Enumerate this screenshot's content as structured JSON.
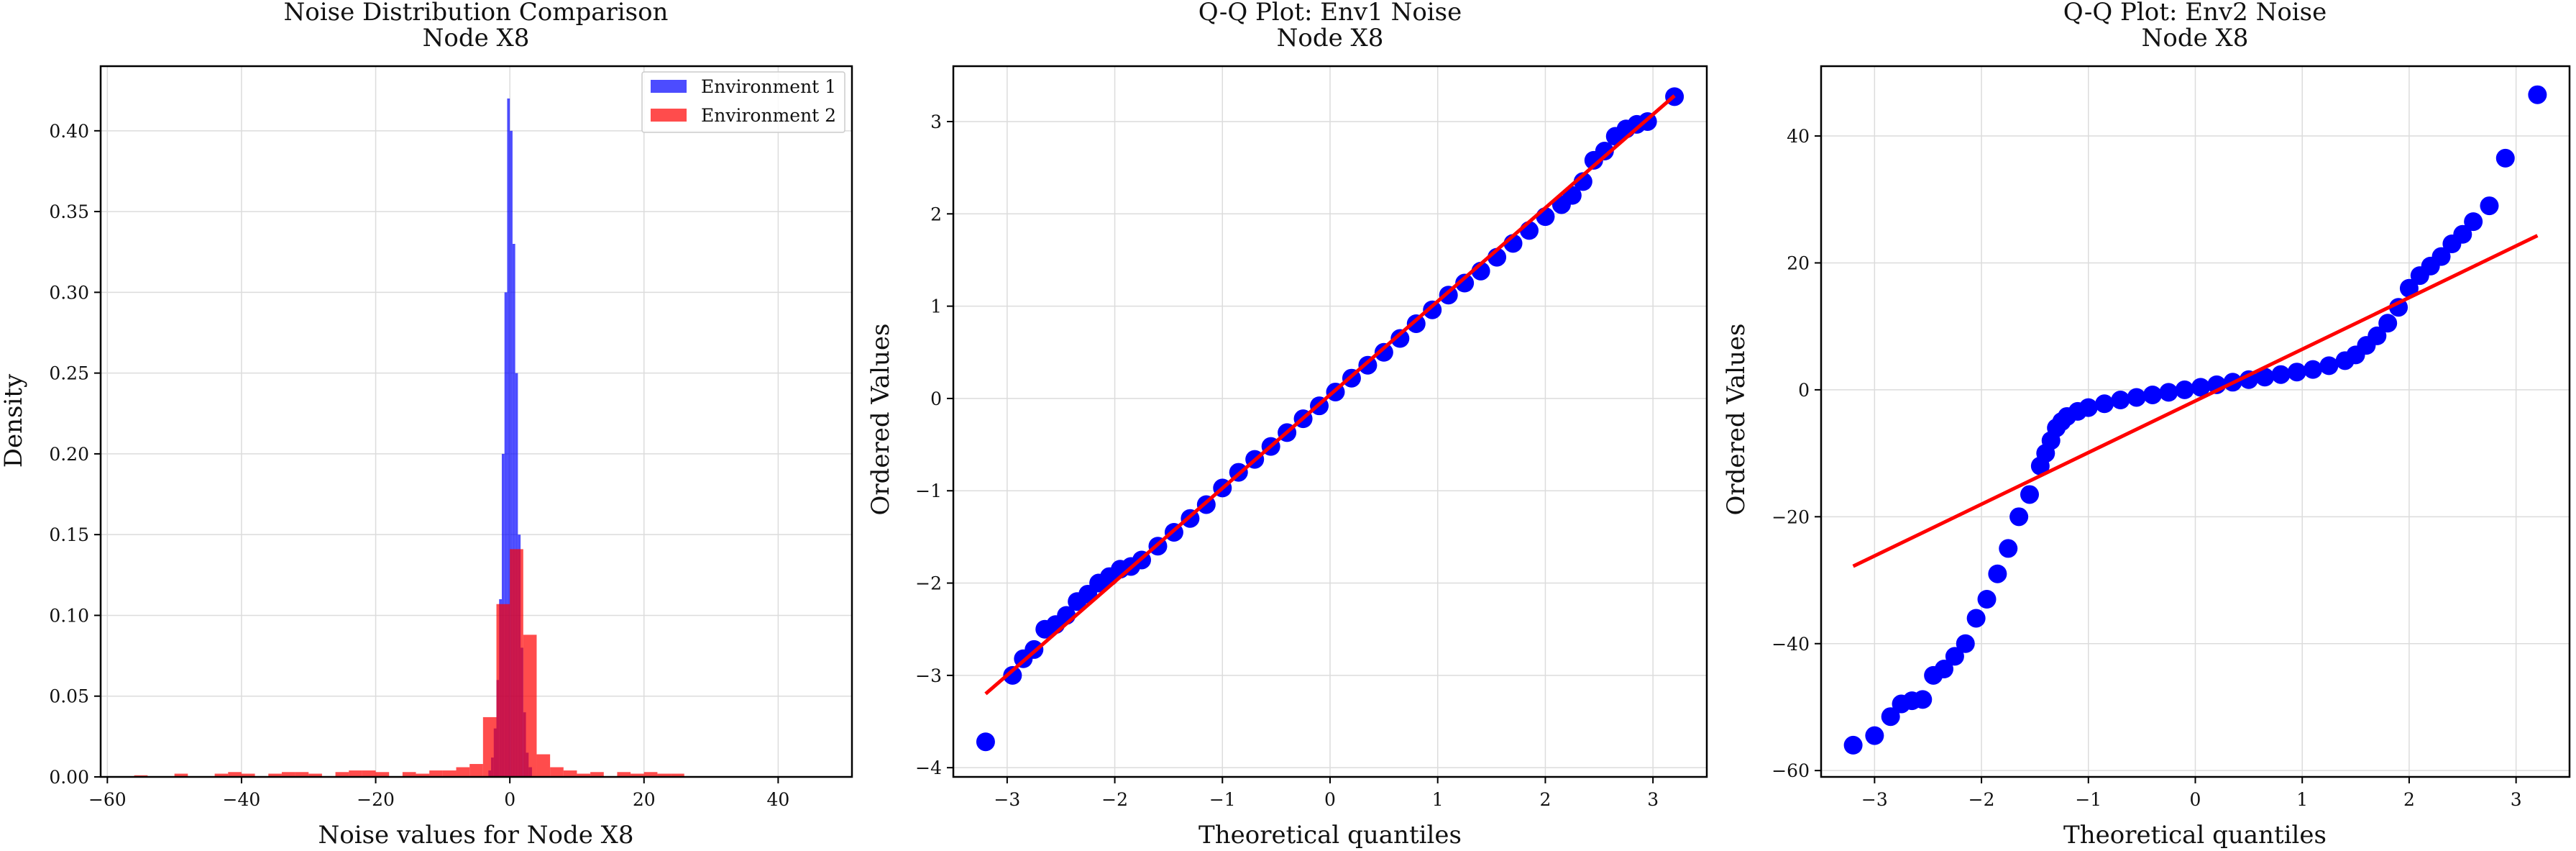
{
  "colors": {
    "env1": "#0000ff",
    "env2": "#ff0000",
    "qq_points": "#0000ff",
    "qq_line": "#ff0000",
    "grid": "#dcdcdc",
    "axes": "#000000"
  },
  "chart_data": [
    {
      "type": "bar",
      "subtype": "overlaid-histogram",
      "title_lines": [
        "Noise Distribution Comparison",
        "Node X8"
      ],
      "xlabel": "Noise values for Node X8",
      "ylabel": "Density",
      "xlim": [
        -61,
        51
      ],
      "ylim": [
        0,
        0.44
      ],
      "xticks": [
        -60,
        -40,
        -20,
        0,
        20,
        40
      ],
      "xtick_labels": [
        "−60",
        "−40",
        "−20",
        "0",
        "20",
        "40"
      ],
      "yticks": [
        0.0,
        0.05,
        0.1,
        0.15,
        0.2,
        0.25,
        0.3,
        0.35,
        0.4
      ],
      "ytick_labels": [
        "0.00",
        "0.05",
        "0.10",
        "0.15",
        "0.20",
        "0.25",
        "0.30",
        "0.35",
        "0.40"
      ],
      "grid": true,
      "legend": "top-right",
      "series": [
        {
          "name": "Environment 1",
          "color": "#0000ff",
          "bins": [
            {
              "x0": -3.2,
              "x1": -2.8,
              "v": 0.004
            },
            {
              "x0": -2.8,
              "x1": -2.4,
              "v": 0.012
            },
            {
              "x0": -2.4,
              "x1": -2.0,
              "v": 0.03
            },
            {
              "x0": -2.0,
              "x1": -1.6,
              "v": 0.06
            },
            {
              "x0": -1.6,
              "x1": -1.2,
              "v": 0.11
            },
            {
              "x0": -1.2,
              "x1": -0.8,
              "v": 0.2
            },
            {
              "x0": -0.8,
              "x1": -0.4,
              "v": 0.3
            },
            {
              "x0": -0.4,
              "x1": 0.0,
              "v": 0.42
            },
            {
              "x0": 0.0,
              "x1": 0.4,
              "v": 0.4
            },
            {
              "x0": 0.4,
              "x1": 0.8,
              "v": 0.33
            },
            {
              "x0": 0.8,
              "x1": 1.2,
              "v": 0.25
            },
            {
              "x0": 1.2,
              "x1": 1.6,
              "v": 0.15
            },
            {
              "x0": 1.6,
              "x1": 2.0,
              "v": 0.08
            },
            {
              "x0": 2.0,
              "x1": 2.4,
              "v": 0.04
            },
            {
              "x0": 2.4,
              "x1": 2.8,
              "v": 0.015
            },
            {
              "x0": 2.8,
              "x1": 3.3,
              "v": 0.006
            }
          ]
        },
        {
          "name": "Environment 2",
          "color": "#ff0000",
          "bins": [
            {
              "x0": -56,
              "x1": -54,
              "v": 0.001
            },
            {
              "x0": -50,
              "x1": -48,
              "v": 0.002
            },
            {
              "x0": -44,
              "x1": -42,
              "v": 0.002
            },
            {
              "x0": -42,
              "x1": -40,
              "v": 0.003
            },
            {
              "x0": -40,
              "x1": -38,
              "v": 0.002
            },
            {
              "x0": -36,
              "x1": -34,
              "v": 0.002
            },
            {
              "x0": -34,
              "x1": -32,
              "v": 0.003
            },
            {
              "x0": -32,
              "x1": -30,
              "v": 0.003
            },
            {
              "x0": -30,
              "x1": -28,
              "v": 0.002
            },
            {
              "x0": -26,
              "x1": -24,
              "v": 0.003
            },
            {
              "x0": -24,
              "x1": -22,
              "v": 0.004
            },
            {
              "x0": -22,
              "x1": -20,
              "v": 0.004
            },
            {
              "x0": -20,
              "x1": -18,
              "v": 0.003
            },
            {
              "x0": -16,
              "x1": -14,
              "v": 0.003
            },
            {
              "x0": -14,
              "x1": -12,
              "v": 0.002
            },
            {
              "x0": -12,
              "x1": -10,
              "v": 0.004
            },
            {
              "x0": -10,
              "x1": -8,
              "v": 0.004
            },
            {
              "x0": -8,
              "x1": -6,
              "v": 0.006
            },
            {
              "x0": -6,
              "x1": -4,
              "v": 0.008
            },
            {
              "x0": -4,
              "x1": -2,
              "v": 0.037
            },
            {
              "x0": -2,
              "x1": 0,
              "v": 0.107
            },
            {
              "x0": 0,
              "x1": 2,
              "v": 0.141
            },
            {
              "x0": 2,
              "x1": 4,
              "v": 0.088
            },
            {
              "x0": 4,
              "x1": 6,
              "v": 0.014
            },
            {
              "x0": 6,
              "x1": 8,
              "v": 0.006
            },
            {
              "x0": 8,
              "x1": 10,
              "v": 0.004
            },
            {
              "x0": 10,
              "x1": 12,
              "v": 0.002
            },
            {
              "x0": 12,
              "x1": 14,
              "v": 0.003
            },
            {
              "x0": 16,
              "x1": 18,
              "v": 0.003
            },
            {
              "x0": 18,
              "x1": 20,
              "v": 0.002
            },
            {
              "x0": 20,
              "x1": 22,
              "v": 0.003
            },
            {
              "x0": 22,
              "x1": 24,
              "v": 0.002
            },
            {
              "x0": 24,
              "x1": 26,
              "v": 0.002
            }
          ]
        }
      ]
    },
    {
      "type": "scatter",
      "subtype": "qq-plot",
      "title_lines": [
        "Q-Q Plot: Env1 Noise",
        "Node X8"
      ],
      "xlabel": "Theoretical quantiles",
      "ylabel": "Ordered Values",
      "xlim": [
        -3.5,
        3.5
      ],
      "ylim": [
        -4.1,
        3.6
      ],
      "xticks": [
        -3,
        -2,
        -1,
        0,
        1,
        2,
        3
      ],
      "xtick_labels": [
        "−3",
        "−2",
        "−1",
        "0",
        "1",
        "2",
        "3"
      ],
      "yticks": [
        -4,
        -3,
        -2,
        -1,
        0,
        1,
        2,
        3
      ],
      "ytick_labels": [
        "−4",
        "−3",
        "−2",
        "−1",
        "0",
        "1",
        "2",
        "3"
      ],
      "grid": true,
      "points": {
        "x": [
          -3.2,
          -2.95,
          -2.85,
          -2.75,
          -2.65,
          -2.55,
          -2.45,
          -2.35,
          -2.25,
          -2.15,
          -2.05,
          -1.95,
          -1.85,
          -1.75,
          -1.6,
          -1.45,
          -1.3,
          -1.15,
          -1.0,
          -0.85,
          -0.7,
          -0.55,
          -0.4,
          -0.25,
          -0.1,
          0.05,
          0.2,
          0.35,
          0.5,
          0.65,
          0.8,
          0.95,
          1.1,
          1.25,
          1.4,
          1.55,
          1.7,
          1.85,
          2.0,
          2.15,
          2.25,
          2.35,
          2.45,
          2.55,
          2.65,
          2.75,
          2.85,
          2.95,
          3.2
        ],
        "y": [
          -3.72,
          -3.0,
          -2.82,
          -2.72,
          -2.5,
          -2.45,
          -2.35,
          -2.2,
          -2.12,
          -2.0,
          -1.93,
          -1.85,
          -1.82,
          -1.75,
          -1.6,
          -1.45,
          -1.3,
          -1.15,
          -0.97,
          -0.8,
          -0.66,
          -0.52,
          -0.37,
          -0.22,
          -0.08,
          0.07,
          0.22,
          0.36,
          0.5,
          0.65,
          0.81,
          0.96,
          1.12,
          1.25,
          1.38,
          1.53,
          1.68,
          1.82,
          1.97,
          2.1,
          2.2,
          2.35,
          2.58,
          2.68,
          2.84,
          2.92,
          2.97,
          3.0,
          3.27
        ]
      },
      "fit_line": {
        "x": [
          -3.2,
          3.2
        ],
        "y": [
          -3.2,
          3.28
        ]
      }
    },
    {
      "type": "scatter",
      "subtype": "qq-plot",
      "title_lines": [
        "Q-Q Plot: Env2 Noise",
        "Node X8"
      ],
      "xlabel": "Theoretical quantiles",
      "ylabel": "Ordered Values",
      "xlim": [
        -3.5,
        3.5
      ],
      "ylim": [
        -61,
        51
      ],
      "xticks": [
        -3,
        -2,
        -1,
        0,
        1,
        2,
        3
      ],
      "xtick_labels": [
        "−3",
        "−2",
        "−1",
        "0",
        "1",
        "2",
        "3"
      ],
      "yticks": [
        -60,
        -40,
        -20,
        0,
        20,
        40
      ],
      "ytick_labels": [
        "−60",
        "−40",
        "−20",
        "0",
        "20",
        "40"
      ],
      "grid": true,
      "points": {
        "x": [
          -3.2,
          -3.0,
          -2.85,
          -2.75,
          -2.65,
          -2.55,
          -2.45,
          -2.35,
          -2.25,
          -2.15,
          -2.05,
          -1.95,
          -1.85,
          -1.75,
          -1.65,
          -1.55,
          -1.45,
          -1.4,
          -1.35,
          -1.3,
          -1.25,
          -1.2,
          -1.1,
          -1.0,
          -0.85,
          -0.7,
          -0.55,
          -0.4,
          -0.25,
          -0.1,
          0.05,
          0.2,
          0.35,
          0.5,
          0.65,
          0.8,
          0.95,
          1.1,
          1.25,
          1.4,
          1.5,
          1.6,
          1.7,
          1.8,
          1.9,
          2.0,
          2.1,
          2.2,
          2.3,
          2.4,
          2.5,
          2.6,
          2.75,
          2.9,
          3.2
        ],
        "y": [
          -56,
          -54.5,
          -51.5,
          -49.5,
          -49,
          -48.8,
          -45,
          -44,
          -42,
          -40,
          -36,
          -33,
          -29,
          -25,
          -20,
          -16.5,
          -12,
          -10,
          -8,
          -6,
          -5,
          -4.2,
          -3.4,
          -2.8,
          -2.2,
          -1.6,
          -1.2,
          -0.8,
          -0.4,
          0.0,
          0.4,
          0.8,
          1.2,
          1.6,
          2.0,
          2.4,
          2.8,
          3.2,
          3.8,
          4.6,
          5.5,
          7,
          8.5,
          10.5,
          13,
          16,
          18,
          19.5,
          21,
          23,
          24.5,
          26.5,
          29,
          36.5,
          46.5
        ]
      },
      "fit_line": {
        "x": [
          -3.2,
          3.2
        ],
        "y": [
          -27.8,
          24.3
        ]
      }
    }
  ]
}
